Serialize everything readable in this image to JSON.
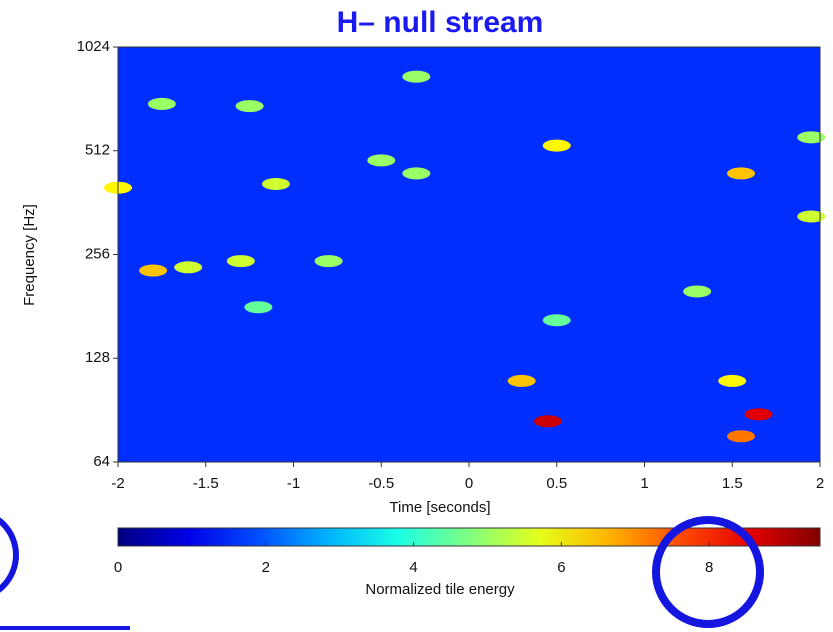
{
  "chart_data": {
    "type": "spectrogram",
    "title": "H– null stream",
    "xlabel": "Time [seconds]",
    "ylabel": "Frequency [Hz]",
    "xlim": [
      -2,
      2
    ],
    "xticks": [
      -2,
      -1.5,
      -1,
      -0.5,
      0,
      0.5,
      1,
      1.5,
      2
    ],
    "ylim": [
      64,
      1024
    ],
    "yscale": "log2",
    "yticks": [
      64,
      128,
      256,
      512,
      1024
    ],
    "colormap": "jet",
    "colorbar": {
      "label": "Normalized tile energy",
      "lim": [
        0,
        9.5
      ],
      "ticks": [
        0,
        2,
        4,
        6,
        8
      ]
    },
    "tiles": {
      "x": [
        0.45,
        1.65,
        1.55,
        0.3,
        1.5,
        -1.8,
        -1.6,
        -1.3,
        -0.8,
        -2,
        -1.1,
        -0.3,
        0.5,
        1.55,
        1.95,
        -1.75,
        -1.25,
        -0.3,
        1.95,
        -1.2,
        1.3,
        -0.5,
        0.5
      ],
      "y": [
        84,
        88,
        76,
        110,
        110,
        230,
        235,
        245,
        245,
        400,
        410,
        440,
        530,
        440,
        330,
        700,
        690,
        840,
        560,
        180,
        200,
        480,
        165
      ],
      "values": [
        8.8,
        8.6,
        7.2,
        6.5,
        6,
        6.5,
        5.5,
        5.5,
        5,
        6,
        5.5,
        5,
        6,
        6.5,
        5.5,
        5,
        5,
        5,
        5,
        4.5,
        5,
        5,
        4.5
      ]
    }
  }
}
